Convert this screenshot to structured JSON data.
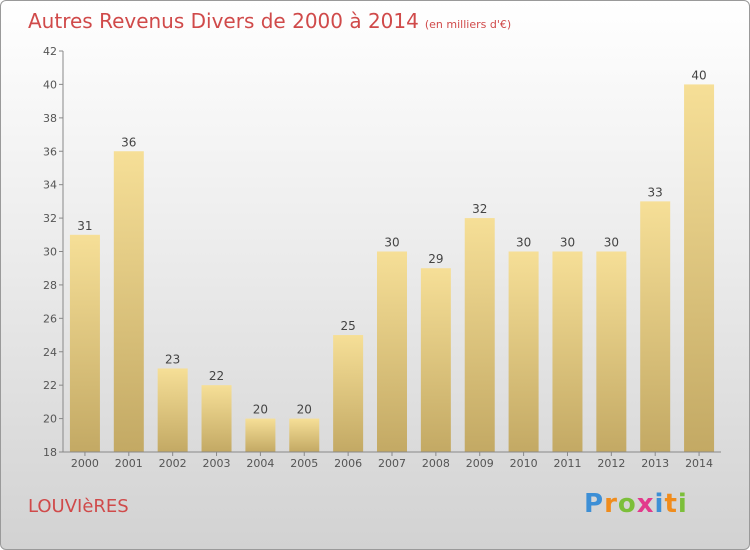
{
  "page": {
    "title": "Autres Revenus Divers de 2000 à 2014",
    "unit": "(en milliers d'€)",
    "city": "LOUVIèRES",
    "logo": {
      "letters": [
        "P",
        "r",
        "o",
        "x",
        "i",
        "t",
        "i"
      ],
      "colors": [
        "#3d8fd6",
        "#f08c1c",
        "#7cbf3a",
        "#e23a8c",
        "#3d8fd6",
        "#f08c1c",
        "#7cbf3a"
      ]
    }
  },
  "chart_data": {
    "type": "bar",
    "categories": [
      "2000",
      "2001",
      "2002",
      "2003",
      "2004",
      "2005",
      "2006",
      "2007",
      "2008",
      "2009",
      "2010",
      "2011",
      "2012",
      "2013",
      "2014"
    ],
    "values": [
      31,
      36,
      23,
      22,
      20,
      20,
      25,
      30,
      29,
      32,
      30,
      30,
      30,
      33,
      40
    ],
    "title": "Autres Revenus Divers de 2000 à 2014",
    "ylim": [
      18,
      42
    ],
    "yticks": [
      18,
      20,
      22,
      24,
      26,
      28,
      30,
      32,
      34,
      36,
      38,
      40,
      42
    ],
    "grid": false,
    "bar_color_top": "#f6df97",
    "bar_color_bottom": "#c3a964"
  }
}
